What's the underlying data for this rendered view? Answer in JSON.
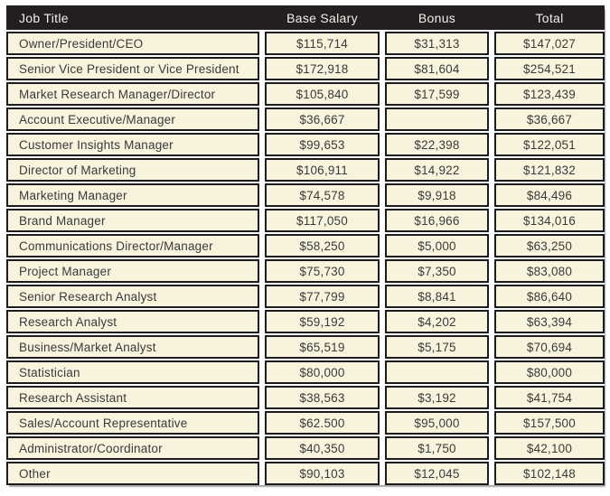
{
  "colors": {
    "header_bg": "#231f20",
    "header_text": "#f2f0eb",
    "row_bg": "#f7f3dd",
    "border": "#1c1c1c",
    "cell_text": "#3a3a3a",
    "page_bg": "#ffffff"
  },
  "table": {
    "columns": [
      "Job Title",
      "Base Salary",
      "Bonus",
      "Total"
    ],
    "rows": [
      {
        "title": "Owner/President/CEO",
        "base": "$115,714",
        "bonus": "$31,313",
        "total": "$147,027"
      },
      {
        "title": "Senior Vice President or Vice President",
        "base": "$172,918",
        "bonus": "$81,604",
        "total": "$254,521"
      },
      {
        "title": "Market Research Manager/Director",
        "base": "$105,840",
        "bonus": "$17,599",
        "total": "$123,439"
      },
      {
        "title": "Account Executive/Manager",
        "base": "$36,667",
        "bonus": "",
        "total": "$36,667"
      },
      {
        "title": "Customer Insights Manager",
        "base": "$99,653",
        "bonus": "$22,398",
        "total": "$122,051"
      },
      {
        "title": "Director of Marketing",
        "base": "$106,911",
        "bonus": "$14,922",
        "total": "$121,832"
      },
      {
        "title": "Marketing Manager",
        "base": "$74,578",
        "bonus": "$9,918",
        "total": "$84,496"
      },
      {
        "title": "Brand Manager",
        "base": "$117,050",
        "bonus": "$16,966",
        "total": "$134,016"
      },
      {
        "title": "Communications Director/Manager",
        "base": "$58,250",
        "bonus": "$5,000",
        "total": "$63,250"
      },
      {
        "title": "Project Manager",
        "base": "$75,730",
        "bonus": "$7,350",
        "total": "$83,080"
      },
      {
        "title": "Senior Research Analyst",
        "base": "$77,799",
        "bonus": "$8,841",
        "total": "$86,640"
      },
      {
        "title": "Research Analyst",
        "base": "$59,192",
        "bonus": "$4,202",
        "total": "$63,394"
      },
      {
        "title": "Business/Market Analyst",
        "base": "$65,519",
        "bonus": "$5,175",
        "total": "$70,694"
      },
      {
        "title": "Statistician",
        "base": "$80,000",
        "bonus": "",
        "total": "$80,000"
      },
      {
        "title": "Research Assistant",
        "base": "$38,563",
        "bonus": "$3,192",
        "total": "$41,754"
      },
      {
        "title": "Sales/Account Representative",
        "base": "$62.500",
        "bonus": "$95,000",
        "total": "$157,500"
      },
      {
        "title": "Administrator/Coordinator",
        "base": "$40,350",
        "bonus": "$1,750",
        "total": "$42,100"
      },
      {
        "title": "Other",
        "base": "$90,103",
        "bonus": "$12,045",
        "total": "$102,148"
      }
    ]
  }
}
